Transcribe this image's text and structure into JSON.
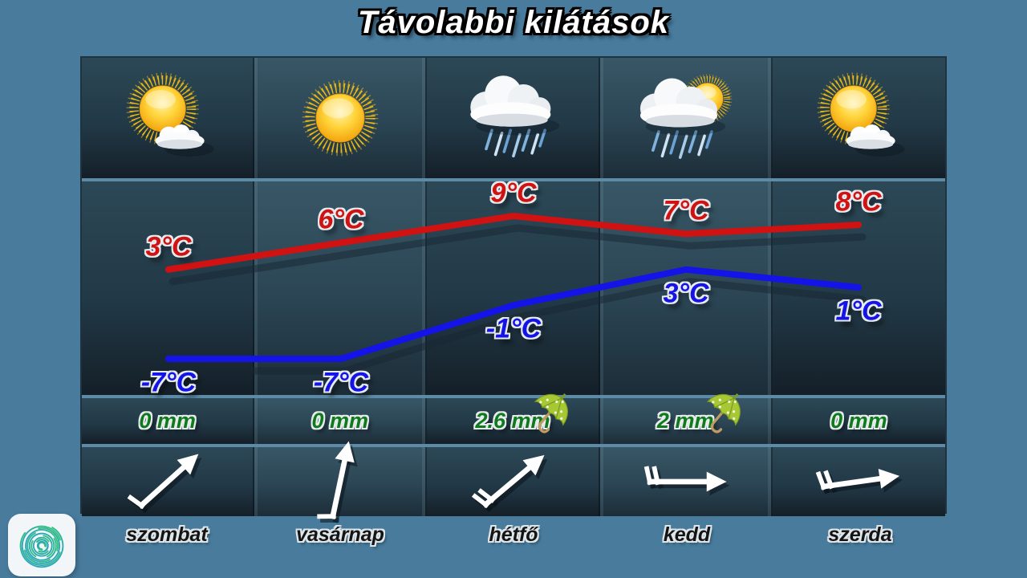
{
  "title": "Távolabbi kilátások",
  "days": [
    {
      "name": "szombat",
      "icon": "sun-cloud",
      "max": "3°C",
      "min": "-7°C",
      "precip": "0 mm",
      "umbrella": false,
      "wind": {
        "angle": 42,
        "barbs": 1
      }
    },
    {
      "name": "vasárnap",
      "icon": "sun",
      "max": "6°C",
      "min": "-7°C",
      "precip": "0 mm",
      "umbrella": false,
      "wind": {
        "angle": 78,
        "barbs": 1
      }
    },
    {
      "name": "hétfő",
      "icon": "rain",
      "max": "9°C",
      "min": "-1°C",
      "precip": "2.6 mm",
      "umbrella": true,
      "wind": {
        "angle": 40,
        "barbs": 2
      }
    },
    {
      "name": "kedd",
      "icon": "rain-sun",
      "max": "7°C",
      "min": "3°C",
      "precip": "2 mm",
      "umbrella": true,
      "wind": {
        "angle": 0,
        "barbs": 2
      }
    },
    {
      "name": "szerda",
      "icon": "sun-cloud",
      "max": "8°C",
      "min": "1°C",
      "precip": "0 mm",
      "umbrella": false,
      "wind": {
        "angle": 8,
        "barbs": 2
      }
    }
  ],
  "chart_data": {
    "type": "line",
    "categories": [
      "szombat",
      "vasárnap",
      "hétfő",
      "kedd",
      "szerda"
    ],
    "series": [
      {
        "name": "max-temperature",
        "color": "#d01212",
        "values": [
          3,
          6,
          9,
          7,
          8
        ],
        "labels": [
          "3°C",
          "6°C",
          "9°C",
          "7°C",
          "8°C"
        ]
      },
      {
        "name": "min-temperature",
        "color": "#1414e8",
        "values": [
          -7,
          -7,
          -1,
          3,
          1
        ],
        "labels": [
          "-7°C",
          "-7°C",
          "-1°C",
          "3°C",
          "1°C"
        ]
      }
    ],
    "unit": "°C",
    "ylim": [
      -9,
      11
    ],
    "grid": false,
    "legend": "none"
  },
  "colors": {
    "background": "#487b9c",
    "cell_dark_top": "#2c4856",
    "cell_dark_bottom": "#141f28",
    "max_line": "#d01212",
    "min_line": "#1414e8",
    "precip_green": "#0f7a1c",
    "title_text": "#ffffff"
  }
}
